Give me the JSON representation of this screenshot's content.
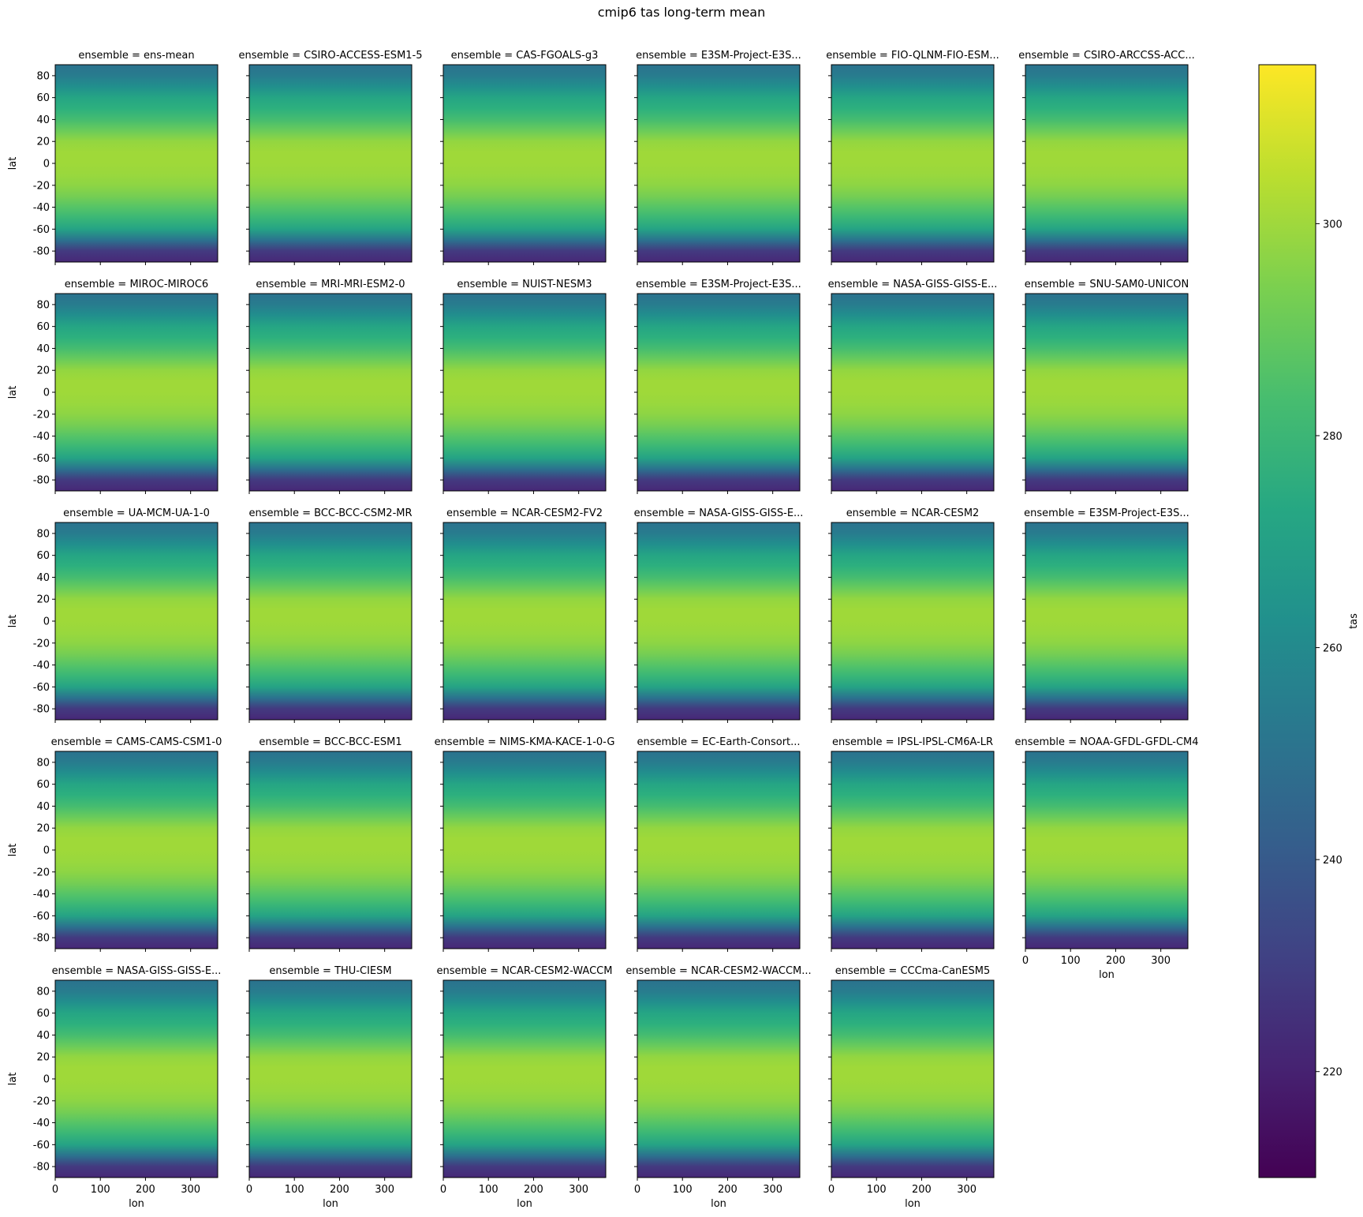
{
  "chart_data": {
    "type": "heatmap",
    "title": "cmip6 tas long-term mean",
    "facet_label_prefix": "ensemble = ",
    "xlabel": "lon",
    "ylabel": "lat",
    "xlim": [
      0,
      360
    ],
    "ylim": [
      -90,
      90
    ],
    "xticks": [
      0,
      100,
      200,
      300
    ],
    "yticks": [
      -80,
      -60,
      -40,
      -20,
      0,
      20,
      40,
      60,
      80
    ],
    "colormap": "viridis",
    "colorbar": {
      "label": "tas",
      "range": [
        210,
        315
      ],
      "ticks": [
        220,
        240,
        260,
        280,
        300
      ]
    },
    "facets": [
      "ens-mean",
      "CSIRO-ACCESS-ESM1-5",
      "CAS-FGOALS-g3",
      "E3SM-Project-E3S...",
      "FIO-QLNM-FIO-ESM...",
      "CSIRO-ARCCSS-ACC...",
      "MIROC-MIROC6",
      "MRI-MRI-ESM2-0",
      "NUIST-NESM3",
      "E3SM-Project-E3S...",
      "NASA-GISS-GISS-E...",
      "SNU-SAM0-UNICON",
      "UA-MCM-UA-1-0",
      "BCC-BCC-CSM2-MR",
      "NCAR-CESM2-FV2",
      "NASA-GISS-GISS-E...",
      "NCAR-CESM2",
      "E3SM-Project-E3S...",
      "CAMS-CAMS-CSM1-0",
      "BCC-BCC-ESM1",
      "NIMS-KMA-KACE-1-0-G",
      "EC-Earth-Consort...",
      "IPSL-IPSL-CM6A-LR",
      "NOAA-GFDL-GFDL-CM4",
      "NASA-GISS-GISS-E...",
      "THU-CIESM",
      "NCAR-CESM2-WACCM",
      "NCAR-CESM2-WACCM...",
      "CCCma-CanESM5"
    ],
    "zonal_mean_profile": {
      "lat": [
        -90,
        -80,
        -70,
        -60,
        -50,
        -40,
        -30,
        -20,
        -10,
        0,
        10,
        20,
        30,
        40,
        50,
        60,
        70,
        80,
        90
      ],
      "tas": [
        222,
        228,
        250,
        271,
        280,
        287,
        293,
        297,
        299,
        300,
        300,
        298,
        291,
        283,
        277,
        272,
        262,
        254,
        250
      ]
    }
  }
}
